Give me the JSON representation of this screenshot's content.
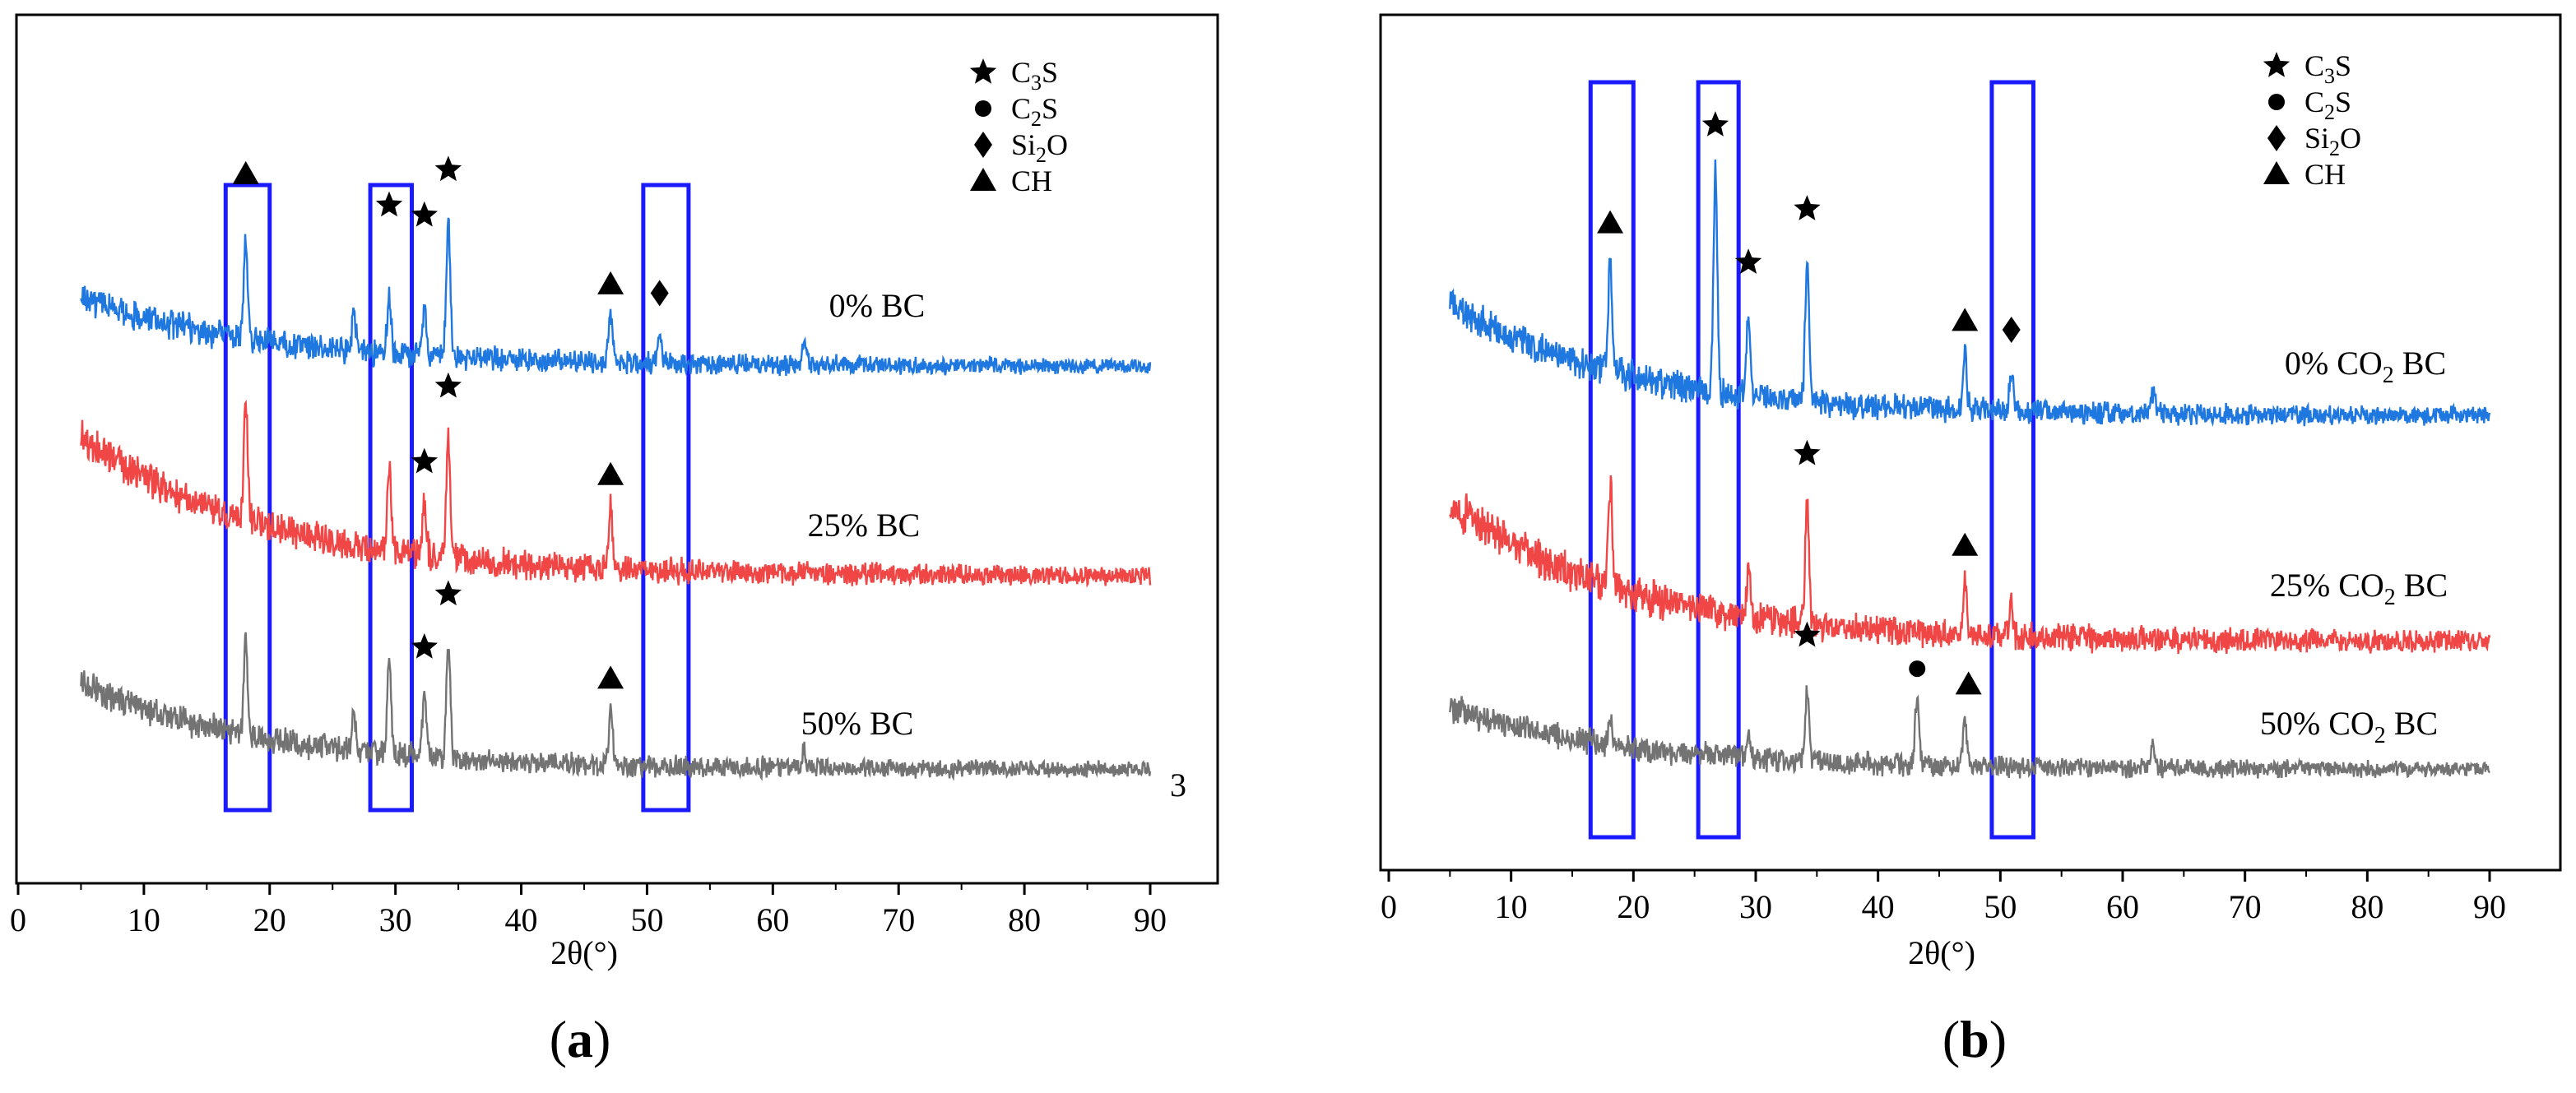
{
  "figure": {
    "panel_a_label": "a",
    "panel_b_label": "b"
  },
  "colors": {
    "series_0": "#1f77e0",
    "series_25": "#f04646",
    "series_50": "#737373",
    "highlight_box": "#1a1aff",
    "axis": "#000000",
    "marker": "#000000"
  },
  "legend": [
    {
      "marker": "star",
      "base": "C",
      "sub": "3",
      "tail": "S"
    },
    {
      "marker": "circle",
      "base": "C",
      "sub": "2",
      "tail": "S"
    },
    {
      "marker": "diamond",
      "base": "Si",
      "sub": "2",
      "tail": "O"
    },
    {
      "marker": "triangle",
      "base": "CH",
      "sub": "",
      "tail": ""
    }
  ],
  "chart_data": [
    {
      "type": "line",
      "panel": "a",
      "xlabel": "2θ(°)",
      "ylabel": "",
      "xlim": [
        0,
        95
      ],
      "xticks": [
        0,
        10,
        20,
        30,
        40,
        50,
        60,
        70,
        80,
        90
      ],
      "extra_label": "3",
      "highlight_ranges": [
        [
          16.5,
          20
        ],
        [
          28,
          31.3
        ],
        [
          49.7,
          53.3
        ]
      ],
      "series": [
        {
          "name": "0% BC",
          "label_pre": "0% ",
          "label_sub": "",
          "label_post": "BC",
          "color_key": "series_0",
          "baseline": 0.0,
          "noise": 0.05,
          "peaks": [
            [
              18.1,
              0.65
            ],
            [
              26.7,
              0.25
            ],
            [
              29.5,
              0.35
            ],
            [
              32.3,
              0.3
            ],
            [
              34.2,
              0.85
            ],
            [
              47.1,
              0.3
            ],
            [
              51.0,
              0.2
            ],
            [
              62.5,
              0.15
            ]
          ],
          "markers": [
            {
              "shape": "triangle",
              "x": 18.1,
              "level": 1.05
            },
            {
              "shape": "star",
              "x": 29.5,
              "level": 0.95
            },
            {
              "shape": "star",
              "x": 32.3,
              "level": 0.9
            },
            {
              "shape": "star",
              "x": 34.2,
              "level": 1.2
            },
            {
              "shape": "triangle",
              "x": 47.1,
              "level": 0.5
            },
            {
              "shape": "diamond",
              "x": 51.0,
              "level": 0.45
            }
          ]
        },
        {
          "name": "25% BC",
          "label_pre": "25% ",
          "label_sub": "",
          "label_post": "BC",
          "color_key": "series_25",
          "baseline": -1.6,
          "noise": 0.06,
          "peaks": [
            [
              18.1,
              0.75
            ],
            [
              29.5,
              0.55
            ],
            [
              32.3,
              0.35
            ],
            [
              34.2,
              0.75
            ],
            [
              47.1,
              0.4
            ]
          ],
          "markers": [
            {
              "shape": "star",
              "x": 32.3,
              "level": 0.6
            },
            {
              "shape": "star",
              "x": 34.2,
              "level": 1.1
            },
            {
              "shape": "triangle",
              "x": 47.1,
              "level": 0.6
            }
          ]
        },
        {
          "name": "50% BC",
          "label_pre": "50% ",
          "label_sub": "",
          "label_post": "BC",
          "color_key": "series_50",
          "baseline": -3.1,
          "noise": 0.05,
          "peaks": [
            [
              18.1,
              0.6
            ],
            [
              26.7,
              0.25
            ],
            [
              29.5,
              0.6
            ],
            [
              32.3,
              0.4
            ],
            [
              34.2,
              0.75
            ],
            [
              47.1,
              0.35
            ],
            [
              62.5,
              0.12
            ]
          ],
          "markers": [
            {
              "shape": "star",
              "x": 32.3,
              "level": 0.7
            },
            {
              "shape": "star",
              "x": 34.2,
              "level": 1.05
            },
            {
              "shape": "triangle",
              "x": 47.1,
              "level": 0.55
            }
          ]
        }
      ]
    },
    {
      "type": "line",
      "panel": "b",
      "xlabel": "2θ(°)",
      "ylabel": "",
      "xlim": [
        0,
        95
      ],
      "xticks": [
        0,
        10,
        20,
        30,
        40,
        50,
        60,
        70,
        80,
        90
      ],
      "extra_label": "",
      "highlight_ranges": [
        [
          16.5,
          20
        ],
        [
          25.3,
          28.6
        ],
        [
          49.3,
          52.7
        ]
      ],
      "series": [
        {
          "name": "0% CO2 BC",
          "label_pre": "0% CO",
          "label_sub": "2",
          "label_post": " BC",
          "color_key": "series_0",
          "baseline": 0.0,
          "noise": 0.06,
          "peaks": [
            [
              18.1,
              0.75
            ],
            [
              26.7,
              1.5
            ],
            [
              29.4,
              0.55
            ],
            [
              34.2,
              1.0
            ],
            [
              47.1,
              0.4
            ],
            [
              50.9,
              0.25
            ],
            [
              62.5,
              0.15
            ]
          ],
          "markers": [
            {
              "shape": "triangle",
              "x": 18.1,
              "level": 1.0
            },
            {
              "shape": "star",
              "x": 26.7,
              "level": 1.8
            },
            {
              "shape": "star",
              "x": 29.4,
              "level": 0.9
            },
            {
              "shape": "star",
              "x": 34.2,
              "level": 1.3
            },
            {
              "shape": "triangle",
              "x": 47.1,
              "level": 0.6
            },
            {
              "shape": "diamond",
              "x": 50.9,
              "level": 0.55
            }
          ]
        },
        {
          "name": "25% CO2 BC",
          "label_pre": "25% CO",
          "label_sub": "2",
          "label_post": " BC",
          "color_key": "series_25",
          "baseline": -1.7,
          "noise": 0.07,
          "peaks": [
            [
              18.1,
              0.7
            ],
            [
              29.4,
              0.3
            ],
            [
              34.2,
              0.8
            ],
            [
              47.1,
              0.35
            ],
            [
              50.9,
              0.2
            ]
          ],
          "markers": [
            {
              "shape": "star",
              "x": 34.2,
              "level": 1.15
            },
            {
              "shape": "triangle",
              "x": 47.1,
              "level": 0.6
            }
          ]
        },
        {
          "name": "50% CO2 BC",
          "label_pre": "50% CO",
          "label_sub": "2",
          "label_post": " BC",
          "color_key": "series_50",
          "baseline": -3.0,
          "noise": 0.05,
          "peaks": [
            [
              18.1,
              0.2
            ],
            [
              29.4,
              0.15
            ],
            [
              34.2,
              0.5
            ],
            [
              43.2,
              0.5
            ],
            [
              47.1,
              0.3
            ],
            [
              62.5,
              0.15
            ]
          ],
          "markers": [
            {
              "shape": "star",
              "x": 34.2,
              "level": 0.85
            },
            {
              "shape": "circle",
              "x": 43.2,
              "level": 0.65
            },
            {
              "shape": "triangle",
              "x": 47.4,
              "level": 0.55
            }
          ]
        }
      ]
    }
  ]
}
